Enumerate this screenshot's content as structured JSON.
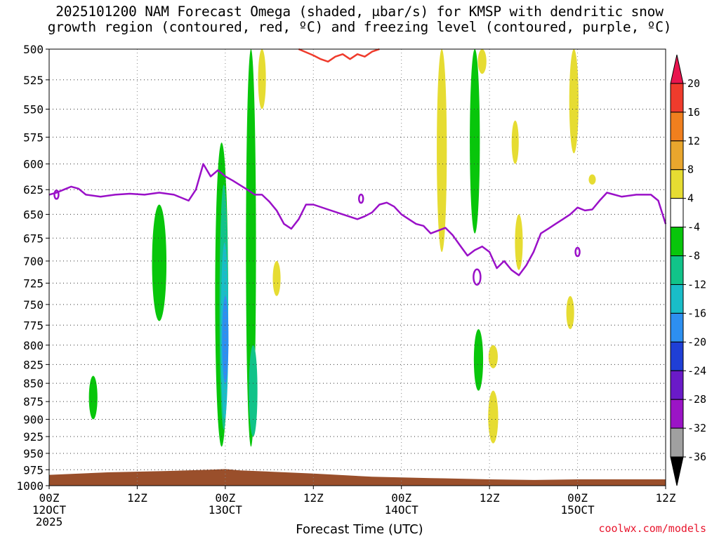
{
  "chart_data": {
    "type": "heatmap",
    "title_lines": [
      "2025101200 NAM Forecast Omega (shaded, μbar/s) for KMSP with dendritic snow",
      "growth region (contoured, red, ºC) and freezing level (contoured, purple, ºC)"
    ],
    "xlabel": "Forecast Time (UTC)",
    "credit": "coolwx.com/models",
    "y_axis": {
      "ticks": [
        500,
        525,
        550,
        575,
        600,
        625,
        650,
        675,
        700,
        725,
        750,
        775,
        800,
        825,
        850,
        875,
        900,
        925,
        950,
        975,
        1000
      ],
      "range": [
        500,
        1000
      ],
      "scale": "log-pressure (inverted)"
    },
    "x_axis": {
      "range_hours": [
        0,
        84
      ],
      "ticks": [
        {
          "h": 0,
          "lines": [
            "00Z",
            "12OCT",
            "2025"
          ]
        },
        {
          "h": 12,
          "lines": [
            "12Z"
          ]
        },
        {
          "h": 24,
          "lines": [
            "00Z",
            "13OCT"
          ]
        },
        {
          "h": 36,
          "lines": [
            "12Z"
          ]
        },
        {
          "h": 48,
          "lines": [
            "00Z",
            "14OCT"
          ]
        },
        {
          "h": 60,
          "lines": [
            "12Z"
          ]
        },
        {
          "h": 72,
          "lines": [
            "00Z",
            "15OCT"
          ]
        },
        {
          "h": 84,
          "lines": [
            "12Z"
          ]
        }
      ]
    },
    "colorbar": {
      "labels": [
        20,
        16,
        12,
        8,
        4,
        -4,
        -8,
        -12,
        -16,
        -20,
        -24,
        -28,
        -32,
        -36
      ],
      "colors": [
        "#e8154f",
        "#ef3b2c",
        "#f07f1e",
        "#e9a62d",
        "#e6dc32",
        "#ffffff",
        "#08c60b",
        "#11c389",
        "#19bdc8",
        "#2d8ff0",
        "#1f3fd6",
        "#6a1ac8",
        "#9b14c6",
        "#a0a0a0",
        "#000000"
      ]
    },
    "series": [
      {
        "name": "freezing level",
        "color": "#9a10c8",
        "points": [
          [
            0,
            630
          ],
          [
            1,
            628
          ],
          [
            2,
            625
          ],
          [
            3,
            622
          ],
          [
            4,
            624
          ],
          [
            5,
            630
          ],
          [
            7,
            632
          ],
          [
            9,
            630
          ],
          [
            11,
            629
          ],
          [
            13,
            630
          ],
          [
            15,
            628
          ],
          [
            17,
            630
          ],
          [
            19,
            636
          ],
          [
            20,
            625
          ],
          [
            21,
            600
          ],
          [
            22,
            612
          ],
          [
            23,
            606
          ],
          [
            24,
            612
          ],
          [
            25,
            616
          ],
          [
            27,
            625
          ],
          [
            28,
            630
          ],
          [
            29,
            630
          ],
          [
            30,
            637
          ],
          [
            31,
            646
          ],
          [
            32,
            660
          ],
          [
            33,
            665
          ],
          [
            34,
            655
          ],
          [
            35,
            640
          ],
          [
            36,
            640
          ],
          [
            38,
            645
          ],
          [
            40,
            650
          ],
          [
            42,
            655
          ],
          [
            43,
            652
          ],
          [
            44,
            648
          ],
          [
            45,
            640
          ],
          [
            46,
            638
          ],
          [
            47,
            642
          ],
          [
            48,
            650
          ],
          [
            49,
            655
          ],
          [
            50,
            660
          ],
          [
            51,
            662
          ],
          [
            52,
            670
          ],
          [
            53,
            667
          ],
          [
            54,
            664
          ],
          [
            55,
            672
          ],
          [
            56,
            683
          ],
          [
            57,
            694
          ],
          [
            58,
            688
          ],
          [
            59,
            684
          ],
          [
            60,
            690
          ],
          [
            61,
            708
          ],
          [
            62,
            700
          ],
          [
            63,
            710
          ],
          [
            64,
            716
          ],
          [
            65,
            705
          ],
          [
            66,
            690
          ],
          [
            67,
            670
          ],
          [
            68,
            665
          ],
          [
            69,
            660
          ],
          [
            70,
            655
          ],
          [
            71,
            650
          ],
          [
            72,
            643
          ],
          [
            73,
            646
          ],
          [
            74,
            645
          ],
          [
            75,
            636
          ],
          [
            76,
            628
          ],
          [
            78,
            632
          ],
          [
            80,
            630
          ],
          [
            82,
            630
          ],
          [
            83,
            636
          ],
          [
            84,
            660
          ]
        ]
      },
      {
        "name": "dendritic growth region",
        "color": "#ef3b2c",
        "points": [
          [
            34,
            500
          ],
          [
            36,
            505
          ],
          [
            37,
            508
          ],
          [
            38,
            510
          ],
          [
            39,
            506
          ],
          [
            40,
            504
          ],
          [
            41,
            508
          ],
          [
            42,
            504
          ],
          [
            43,
            506
          ],
          [
            44,
            502
          ],
          [
            45,
            500
          ]
        ]
      }
    ],
    "omega_regions": [
      {
        "band": "-4 to -8",
        "color": "#08c60b",
        "cells": [
          [
            6,
            840,
            900,
            0.4
          ],
          [
            15,
            640,
            770,
            1.2
          ],
          [
            23.5,
            580,
            940,
            1.0
          ],
          [
            27.5,
            500,
            940,
            0.6
          ],
          [
            58,
            500,
            670,
            0.6
          ],
          [
            58.5,
            780,
            860,
            0.5
          ]
        ]
      },
      {
        "band": "-8 to -12",
        "color": "#11c389",
        "cells": [
          [
            23.8,
            620,
            915,
            0.4
          ],
          [
            27.8,
            800,
            925,
            0.4
          ]
        ]
      },
      {
        "band": "-12 to -16",
        "color": "#19bdc8",
        "cells": [
          [
            23.9,
            680,
            900,
            0.25
          ]
        ]
      },
      {
        "band": "-16 to -20",
        "color": "#2d8ff0",
        "cells": [
          [
            24,
            740,
            850,
            0.1
          ]
        ]
      },
      {
        "band": "4 to 8",
        "color": "#e6dc32",
        "cells": [
          [
            29,
            500,
            550,
            0.3
          ],
          [
            31,
            700,
            740,
            0.3
          ],
          [
            53.5,
            500,
            690,
            0.6
          ],
          [
            59,
            500,
            520,
            0.4
          ],
          [
            60.5,
            800,
            830,
            0.5
          ],
          [
            60.5,
            860,
            935,
            0.6
          ],
          [
            63.5,
            560,
            600,
            0.2
          ],
          [
            64,
            650,
            710,
            0.3
          ],
          [
            71.5,
            500,
            590,
            0.5
          ],
          [
            74,
            610,
            620,
            0.2
          ],
          [
            71,
            740,
            780,
            0.3
          ]
        ]
      }
    ]
  }
}
